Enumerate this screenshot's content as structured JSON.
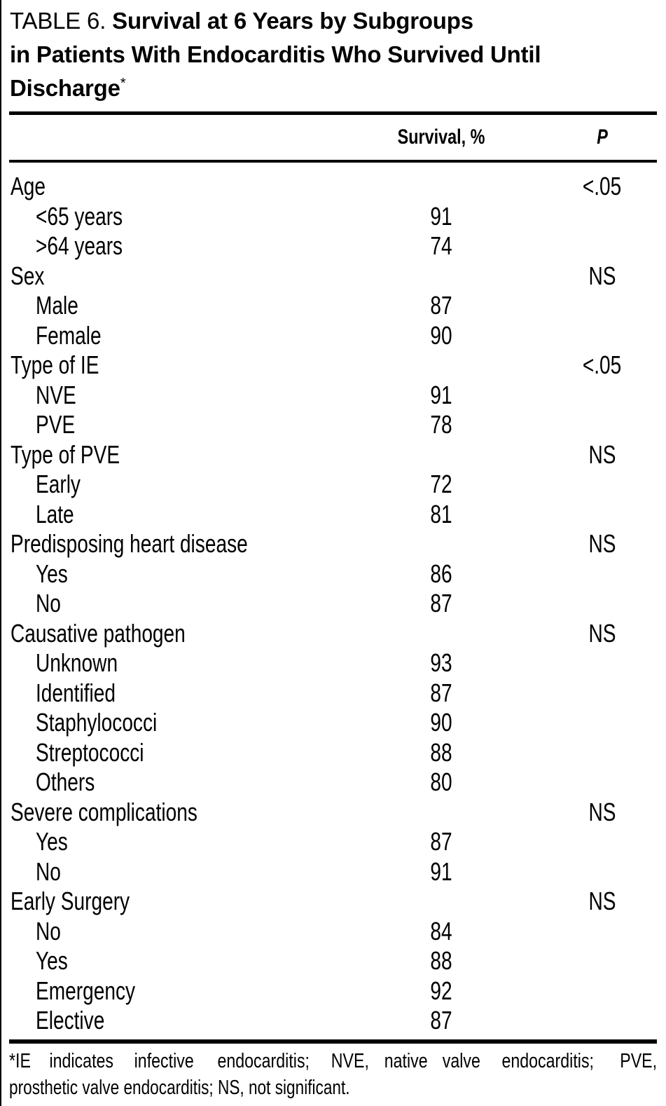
{
  "document": {
    "table_label": "TABLE 6.",
    "title_lines": [
      "Survival at 6 Years by Subgroups",
      "in Patients With Endocarditis Who Survived Until",
      "Discharge"
    ],
    "footnote_marker": "*"
  },
  "columns": {
    "survival": "Survival, %",
    "p": "P"
  },
  "rows": [
    {
      "label": "Age",
      "indent": 0,
      "survival": "",
      "p": "<.05"
    },
    {
      "label": "<65 years",
      "indent": 1,
      "survival": "91",
      "p": ""
    },
    {
      "label": ">64 years",
      "indent": 1,
      "survival": "74",
      "p": ""
    },
    {
      "label": "Sex",
      "indent": 0,
      "survival": "",
      "p": "NS"
    },
    {
      "label": "Male",
      "indent": 1,
      "survival": "87",
      "p": ""
    },
    {
      "label": "Female",
      "indent": 1,
      "survival": "90",
      "p": ""
    },
    {
      "label": "Type of IE",
      "indent": 0,
      "survival": "",
      "p": "<.05"
    },
    {
      "label": "NVE",
      "indent": 1,
      "survival": "91",
      "p": ""
    },
    {
      "label": "PVE",
      "indent": 1,
      "survival": "78",
      "p": ""
    },
    {
      "label": "Type of PVE",
      "indent": 0,
      "survival": "",
      "p": "NS"
    },
    {
      "label": "Early",
      "indent": 1,
      "survival": "72",
      "p": ""
    },
    {
      "label": "Late",
      "indent": 1,
      "survival": "81",
      "p": ""
    },
    {
      "label": "Predisposing heart disease",
      "indent": 0,
      "survival": "",
      "p": "NS"
    },
    {
      "label": "Yes",
      "indent": 1,
      "survival": "86",
      "p": ""
    },
    {
      "label": "No",
      "indent": 1,
      "survival": "87",
      "p": ""
    },
    {
      "label": "Causative pathogen",
      "indent": 0,
      "survival": "",
      "p": "NS"
    },
    {
      "label": "Unknown",
      "indent": 1,
      "survival": "93",
      "p": ""
    },
    {
      "label": "Identified",
      "indent": 1,
      "survival": "87",
      "p": ""
    },
    {
      "label": "Staphylococci",
      "indent": 1,
      "survival": "90",
      "p": ""
    },
    {
      "label": "Streptococci",
      "indent": 1,
      "survival": "88",
      "p": ""
    },
    {
      "label": "Others",
      "indent": 1,
      "survival": "80",
      "p": ""
    },
    {
      "label": "Severe complications",
      "indent": 0,
      "survival": "",
      "p": "NS"
    },
    {
      "label": "Yes",
      "indent": 1,
      "survival": "87",
      "p": ""
    },
    {
      "label": "No",
      "indent": 1,
      "survival": "91",
      "p": ""
    },
    {
      "label": "Early Surgery",
      "indent": 0,
      "survival": "",
      "p": "NS"
    },
    {
      "label": "No",
      "indent": 1,
      "survival": "84",
      "p": ""
    },
    {
      "label": "Yes",
      "indent": 1,
      "survival": "88",
      "p": ""
    },
    {
      "label": "Emergency",
      "indent": 1,
      "survival": "92",
      "p": ""
    },
    {
      "label": "Elective",
      "indent": 1,
      "survival": "87",
      "p": ""
    }
  ],
  "footnote": {
    "line1": "*IE indicates infective endocarditis; NVE, native valve endocarditis; PVE,",
    "line2": "prosthetic valve endocarditis; NS, not significant."
  },
  "colors": {
    "text": "#000000",
    "background": "#ffffff"
  }
}
